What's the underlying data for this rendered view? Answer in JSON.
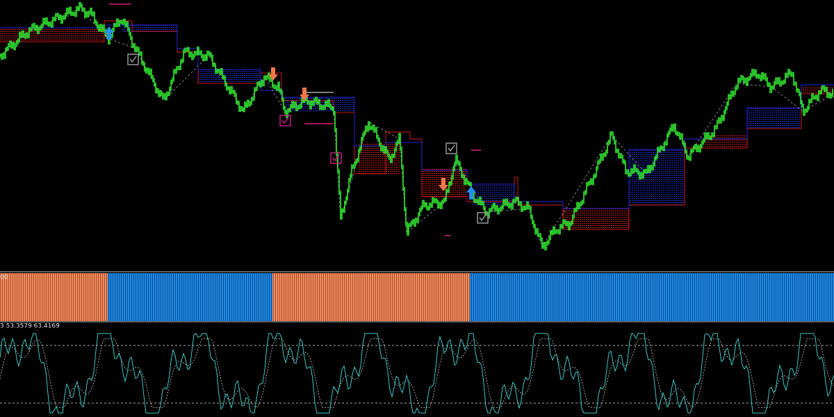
{
  "panels": {
    "histogram_label": "00",
    "oscillator_label": "3 53.3579 63.4169"
  }
}
